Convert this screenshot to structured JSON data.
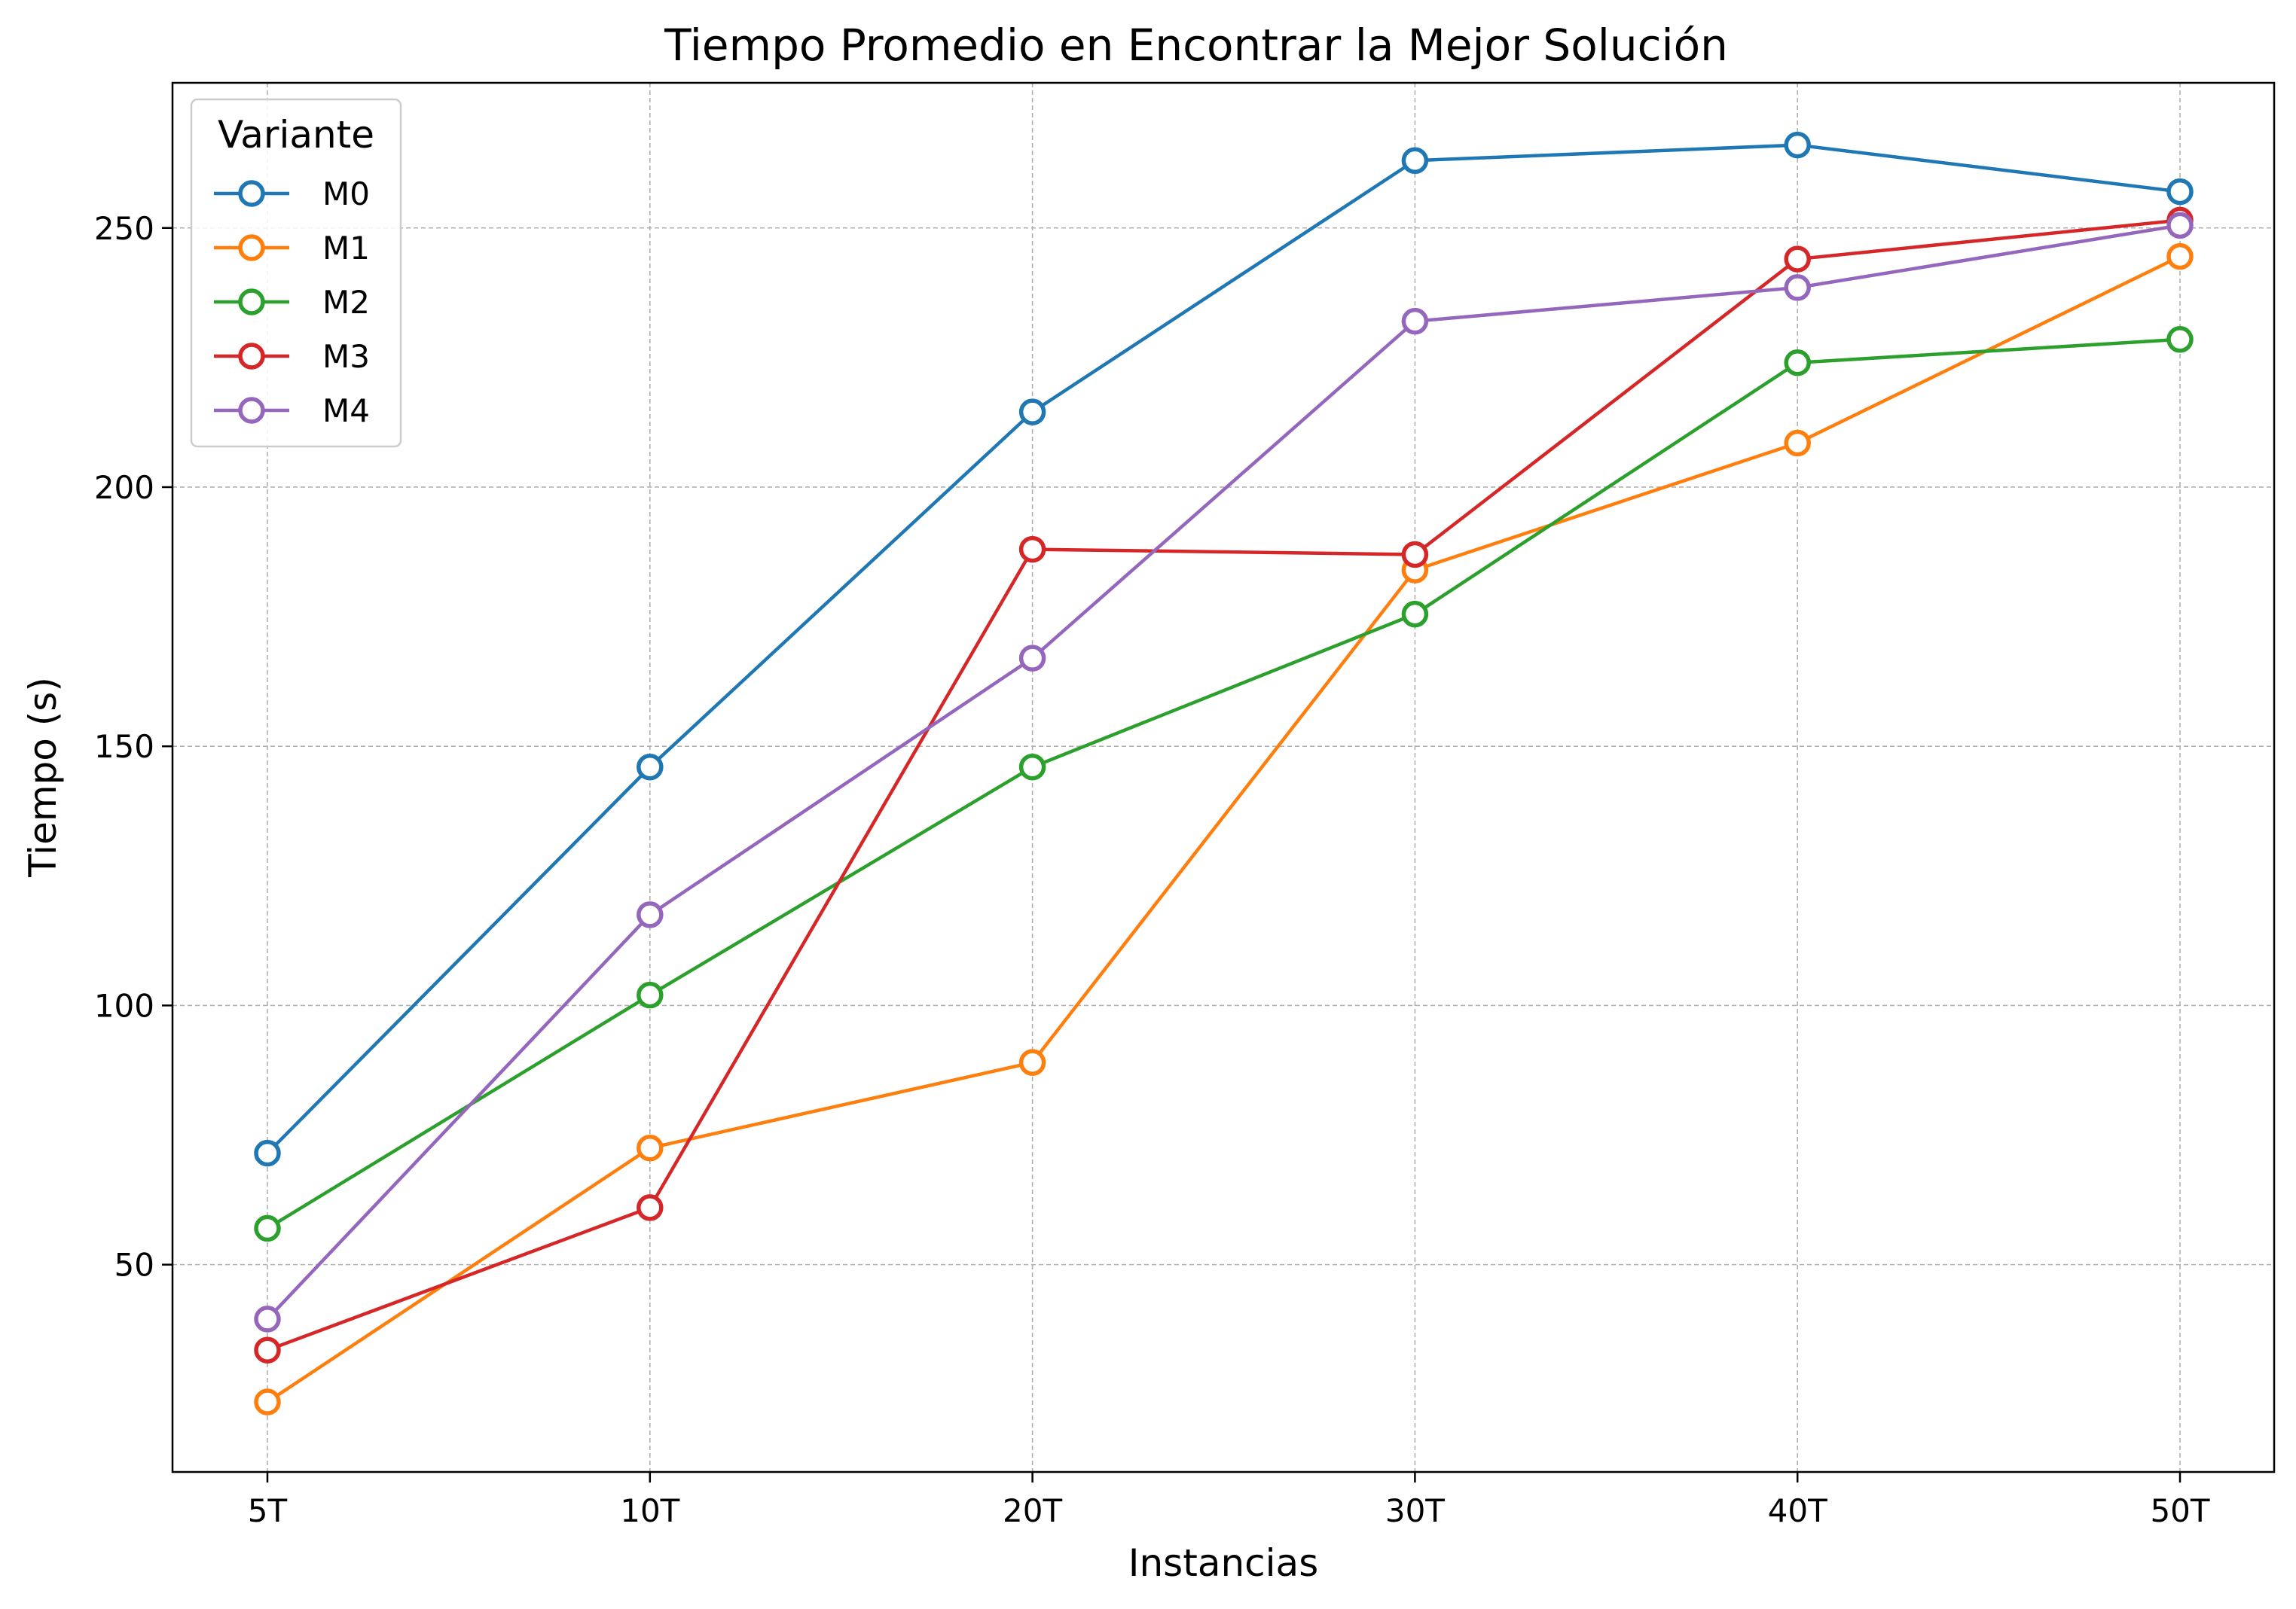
{
  "chart_data": {
    "type": "line",
    "title": "Tiempo Promedio en Encontrar la Mejor Solución",
    "xlabel": "Instancias",
    "ylabel": "Tiempo (s)",
    "categories": [
      "5T",
      "10T",
      "20T",
      "30T",
      "40T",
      "50T"
    ],
    "ylim": [
      10,
      278
    ],
    "yticks": [
      50,
      100,
      150,
      200,
      250
    ],
    "grid": true,
    "legend": {
      "title": "Variante",
      "placement": "top-left"
    },
    "series": [
      {
        "name": "M0",
        "color": "#1f77b4",
        "values": [
          71.5,
          146,
          214.5,
          263,
          266,
          257
        ]
      },
      {
        "name": "M1",
        "color": "#ff7f0e",
        "values": [
          23.5,
          72.5,
          89,
          184,
          208.5,
          244.5
        ]
      },
      {
        "name": "M2",
        "color": "#2ca02c",
        "values": [
          57,
          102,
          146,
          175.5,
          224,
          228.5
        ]
      },
      {
        "name": "M3",
        "color": "#d62728",
        "values": [
          33.5,
          61,
          188,
          187,
          244,
          251.5
        ]
      },
      {
        "name": "M4",
        "color": "#9467bd",
        "values": [
          39.5,
          117.5,
          167,
          232,
          238.5,
          250.5
        ]
      }
    ]
  }
}
